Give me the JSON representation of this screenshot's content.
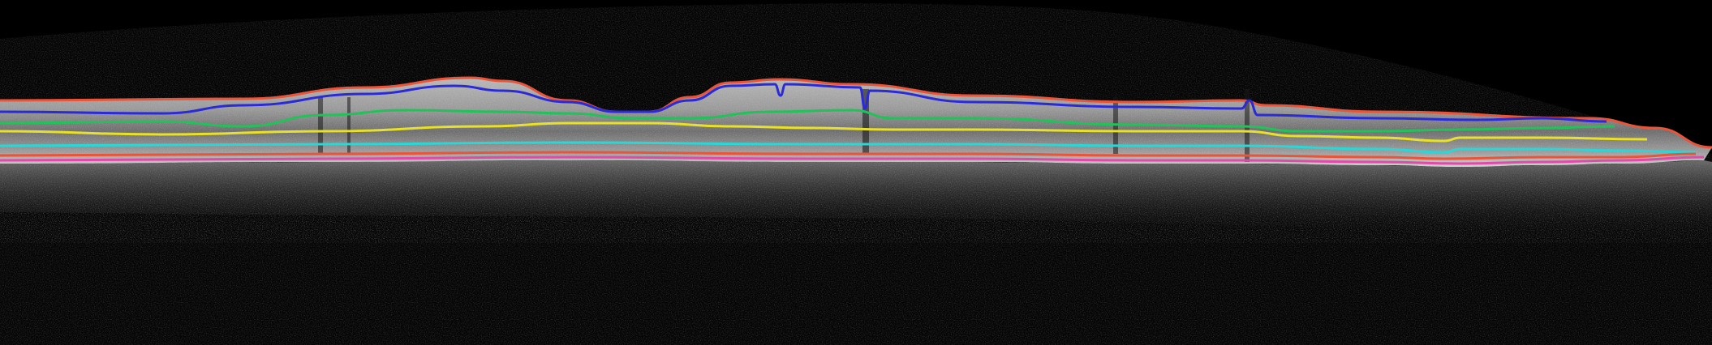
{
  "image": {
    "kind": "oct-bscan-layer-segmentation",
    "background_color": "#000000",
    "tissue_color": "#8c8c8c"
  },
  "segmentation_lines": [
    {
      "id": "ilm",
      "color": "#e8553a"
    },
    {
      "id": "rnfl",
      "color": "#2a2ad6"
    },
    {
      "id": "ipl",
      "color": "#22c25a"
    },
    {
      "id": "opl",
      "color": "#e8e02a"
    },
    {
      "id": "is-os",
      "color": "#2ad6d6"
    },
    {
      "id": "rpe",
      "color": "#e8553a"
    },
    {
      "id": "bm",
      "color": "#e04aa8"
    }
  ]
}
